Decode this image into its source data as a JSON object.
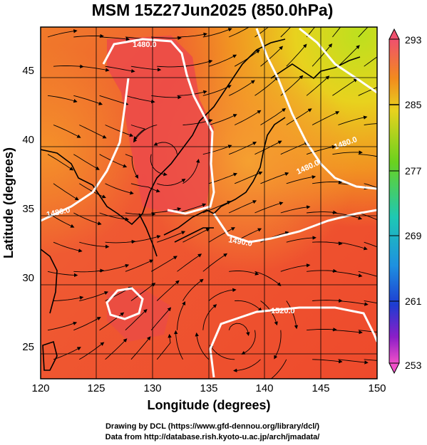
{
  "title": "MSM 15Z27Jun2025 (850.0hPa)",
  "x_axis": {
    "label": "Longitude (degrees)",
    "ticks": [
      "120",
      "125",
      "130",
      "135",
      "140",
      "145",
      "150"
    ]
  },
  "y_axis": {
    "label": "Latitude  (degrees)",
    "ticks": [
      "25",
      "30",
      "35",
      "40",
      "45"
    ]
  },
  "colorbar": {
    "ticks": [
      "293",
      "285",
      "277",
      "269",
      "261",
      "253"
    ],
    "colors": [
      "#f0506e",
      "#f28a1e",
      "#e8d21e",
      "#6ad21e",
      "#1ec8b4",
      "#1e3cd2",
      "#8c1ec8",
      "#f050c8"
    ]
  },
  "contour_labels": [
    "1480.0",
    "1480.0",
    "1480.0",
    "1480.0",
    "1490.0",
    "1520.0"
  ],
  "credits": {
    "line1": "Drawing by DCL (https://www.gfd-dennou.org/library/dcl/)",
    "line2": "Data from http://database.rish.kyoto-u.ac.jp/arch/jmadata/"
  },
  "chart_data": {
    "type": "heatmap",
    "title": "MSM 15Z27Jun2025 (850.0hPa)",
    "xlabel": "Longitude (degrees)",
    "ylabel": "Latitude  (degrees)",
    "xlim": [
      120,
      150
    ],
    "ylim": [
      22.5,
      47.5
    ],
    "colorbar_range": [
      253,
      293
    ],
    "overlays": [
      "streamlines",
      "geopotential height contours",
      "coastlines",
      "grid"
    ],
    "contour_values": [
      1480.0,
      1490.0,
      1520.0
    ],
    "grid": true
  }
}
